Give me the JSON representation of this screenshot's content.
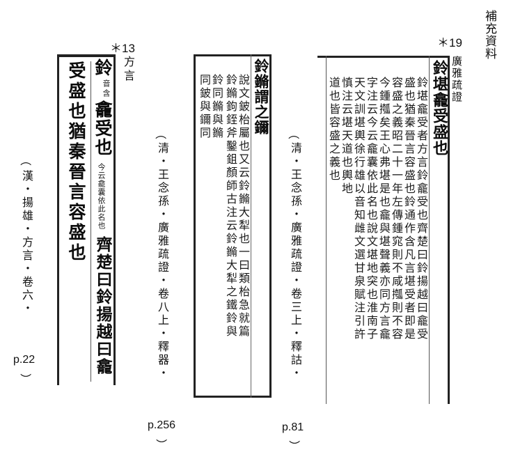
{
  "corner_label": "補充資料",
  "panel_a": {
    "marker": "＊13",
    "source_label": "方言",
    "col1": "鈴",
    "col1_annot": "音含",
    "col1_rest": "龕受也",
    "col1_annot2": "今云龕囊依此名也",
    "col1_tail": "齊楚曰鈴揚越曰龕",
    "col2": "受盛也猶秦晉言容盛也",
    "citation": "漢・揚雄・方言・卷六・",
    "paren_open": "（",
    "page": "p.22",
    "paren_close": "）"
  },
  "panel_b": {
    "title": "鈴鏅謂之鑈",
    "col1": "說文鈹枱屬也又云鈴鏅大犁也一曰類枱急就篇",
    "col2": "鈴鏅鉤銍斧鑿鉏顏師古注云鈴鏅大犁之鐵鈴與",
    "col3": "鈴同鏅與鏅",
    "col4": "同鈹與鑈同",
    "citation": "清・王念孫・廣雅疏證・卷八上・釋器・",
    "paren_open": "（",
    "page": "p.256",
    "paren_close": "）"
  },
  "panel_c": {
    "marker": "＊19",
    "source_label": "廣雅疏證",
    "title": "鈴堪龕受盛也",
    "col1": "鈴堪龕受者方言鈴龕受也齊楚曰鈴揚越曰龕受",
    "col2": "盛也猶秦晉言容盛也鈴通作含凡言堪受者即是",
    "col3": "容盛之義昭二十一年左傳鍾窕則不咸摦則不容",
    "col4": "今鍾摦矣王心弗堪是也龕與堪聲義亦同方言龕",
    "col5": "字注云今云龕囊依此名也說文堪地突也淮南子",
    "col6": "天文訓堪輿徐行雄以音知雌文選甘泉賦注引許",
    "col7": "慎注云堪天道也輿地",
    "col8": "道也皆容盛之義也",
    "citation": "清・王念孫・廣雅疏證・卷三上・釋詁・",
    "paren_open": "（",
    "page": "p.81",
    "paren_close": "）"
  }
}
